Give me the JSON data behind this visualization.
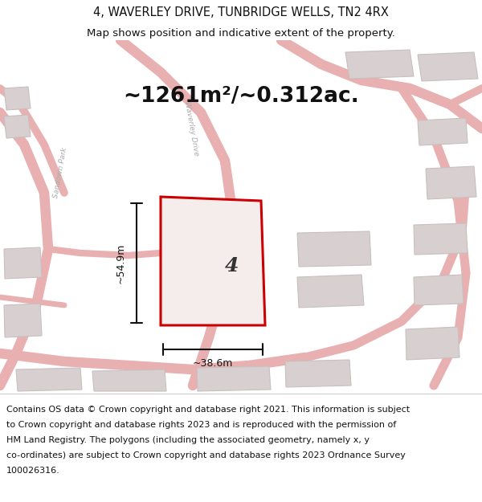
{
  "title_line1": "4, WAVERLEY DRIVE, TUNBRIDGE WELLS, TN2 4RX",
  "title_line2": "Map shows position and indicative extent of the property.",
  "area_text": "~1261m²/~0.312ac.",
  "property_number": "4",
  "dim_height": "~54.9m",
  "dim_width": "~38.6m",
  "footer_lines": [
    "Contains OS data © Crown copyright and database right 2021. This information is subject",
    "to Crown copyright and database rights 2023 and is reproduced with the permission of",
    "HM Land Registry. The polygons (including the associated geometry, namely x, y",
    "co-ordinates) are subject to Crown copyright and database rights 2023 Ordnance Survey",
    "100026316."
  ],
  "map_bg": "#ffffff",
  "road_color": "#e8b0b0",
  "plot_outline_color": "#cc0000",
  "plot_fill_color": "#f5ecec",
  "building_color": "#d8d0d0",
  "building_edge": "#c8c0c0",
  "title_fontsize": 10.5,
  "subtitle_fontsize": 9.5,
  "area_fontsize": 19,
  "footer_fontsize": 8,
  "dim_fontsize": 9
}
